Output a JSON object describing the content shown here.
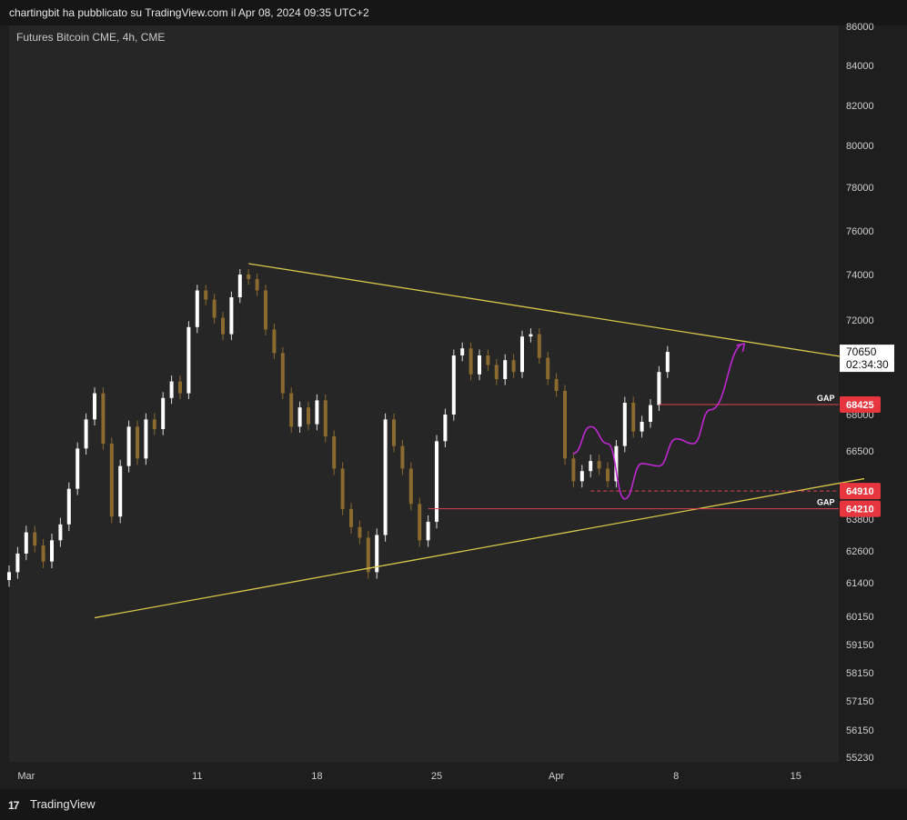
{
  "header": {
    "publish_text": "chartingbit ha pubblicato su TradingView.com il Apr 08, 2024 09:35 UTC+2"
  },
  "symbol": {
    "title": "Futures Bitcoin CME, 4h, CME"
  },
  "footer": {
    "brand": "TradingView",
    "logo_icon": "tradingview-logo-icon"
  },
  "colors": {
    "background": "#262626",
    "bull_candle": "#ffffff",
    "bear_candle": "#8a6a2e",
    "trendline": "#d9c64a",
    "projection": "#c026d3",
    "gap_line": "#e04050",
    "badge": "#e8363f"
  },
  "chart_data": {
    "type": "candlestick",
    "title": "Futures Bitcoin CME, 4h, CME",
    "interval": "4h",
    "y_ticks": [
      86000,
      84000,
      82000,
      80000,
      78000,
      76000,
      74000,
      72000,
      68000,
      66500,
      63800,
      62600,
      61400,
      60150,
      59150,
      58150,
      57150,
      56150,
      55230
    ],
    "y_range": [
      54800,
      86200
    ],
    "x_ticks": [
      {
        "label": "Mar",
        "day": 1
      },
      {
        "label": "11",
        "day": 11
      },
      {
        "label": "18",
        "day": 18
      },
      {
        "label": "25",
        "day": 25
      },
      {
        "label": "Apr",
        "day": 32
      },
      {
        "label": "8",
        "day": 39
      },
      {
        "label": "15",
        "day": 46
      }
    ],
    "close_series": [
      {
        "day": 0.0,
        "close": 61800
      },
      {
        "day": 0.5,
        "close": 62500
      },
      {
        "day": 1.0,
        "close": 63300
      },
      {
        "day": 1.5,
        "close": 62800
      },
      {
        "day": 2.0,
        "close": 62200
      },
      {
        "day": 2.5,
        "close": 63000
      },
      {
        "day": 3.0,
        "close": 63600
      },
      {
        "day": 3.5,
        "close": 65000
      },
      {
        "day": 4.0,
        "close": 66600
      },
      {
        "day": 4.5,
        "close": 67800
      },
      {
        "day": 5.0,
        "close": 68900
      },
      {
        "day": 5.5,
        "close": 66800
      },
      {
        "day": 6.0,
        "close": 63900
      },
      {
        "day": 6.5,
        "close": 65900
      },
      {
        "day": 7.0,
        "close": 67500
      },
      {
        "day": 7.5,
        "close": 66200
      },
      {
        "day": 8.0,
        "close": 67800
      },
      {
        "day": 8.5,
        "close": 67400
      },
      {
        "day": 9.0,
        "close": 68700
      },
      {
        "day": 9.5,
        "close": 69400
      },
      {
        "day": 10.0,
        "close": 68900
      },
      {
        "day": 10.5,
        "close": 71700
      },
      {
        "day": 11.0,
        "close": 73300
      },
      {
        "day": 11.5,
        "close": 72900
      },
      {
        "day": 12.0,
        "close": 72100
      },
      {
        "day": 12.5,
        "close": 71400
      },
      {
        "day": 13.0,
        "close": 73000
      },
      {
        "day": 13.5,
        "close": 74000
      },
      {
        "day": 14.0,
        "close": 73800
      },
      {
        "day": 14.5,
        "close": 73300
      },
      {
        "day": 15.0,
        "close": 71600
      },
      {
        "day": 15.5,
        "close": 70600
      },
      {
        "day": 16.0,
        "close": 68900
      },
      {
        "day": 16.5,
        "close": 67500
      },
      {
        "day": 17.0,
        "close": 68300
      },
      {
        "day": 17.5,
        "close": 67600
      },
      {
        "day": 18.0,
        "close": 68600
      },
      {
        "day": 18.5,
        "close": 67100
      },
      {
        "day": 19.0,
        "close": 65800
      },
      {
        "day": 19.5,
        "close": 64200
      },
      {
        "day": 20.0,
        "close": 63500
      },
      {
        "day": 20.5,
        "close": 63100
      },
      {
        "day": 21.0,
        "close": 61800
      },
      {
        "day": 21.5,
        "close": 63200
      },
      {
        "day": 22.0,
        "close": 67800
      },
      {
        "day": 22.5,
        "close": 66700
      },
      {
        "day": 23.0,
        "close": 65800
      },
      {
        "day": 23.5,
        "close": 64400
      },
      {
        "day": 24.0,
        "close": 63000
      },
      {
        "day": 24.5,
        "close": 63700
      },
      {
        "day": 25.0,
        "close": 66900
      },
      {
        "day": 25.5,
        "close": 68000
      },
      {
        "day": 26.0,
        "close": 70500
      },
      {
        "day": 26.5,
        "close": 70800
      },
      {
        "day": 27.0,
        "close": 69700
      },
      {
        "day": 27.5,
        "close": 70500
      },
      {
        "day": 28.0,
        "close": 70100
      },
      {
        "day": 28.5,
        "close": 69500
      },
      {
        "day": 29.0,
        "close": 70300
      },
      {
        "day": 29.5,
        "close": 69800
      },
      {
        "day": 30.0,
        "close": 71300
      },
      {
        "day": 30.5,
        "close": 71400
      },
      {
        "day": 31.0,
        "close": 70400
      },
      {
        "day": 31.5,
        "close": 69500
      },
      {
        "day": 32.0,
        "close": 69000
      },
      {
        "day": 32.5,
        "close": 66200
      },
      {
        "day": 33.0,
        "close": 65300
      },
      {
        "day": 33.5,
        "close": 65700
      },
      {
        "day": 34.0,
        "close": 66100
      },
      {
        "day": 34.5,
        "close": 65800
      },
      {
        "day": 35.0,
        "close": 65300
      },
      {
        "day": 35.5,
        "close": 66700
      },
      {
        "day": 36.0,
        "close": 68500
      },
      {
        "day": 36.5,
        "close": 67300
      },
      {
        "day": 37.0,
        "close": 67700
      },
      {
        "day": 37.5,
        "close": 68400
      },
      {
        "day": 38.0,
        "close": 69800
      },
      {
        "day": 38.5,
        "close": 70650
      }
    ],
    "trendlines": [
      {
        "name": "resistance",
        "from": {
          "day": 14.0,
          "price": 74500
        },
        "to": {
          "day": 50.0,
          "price": 70300
        }
      },
      {
        "name": "support",
        "from": {
          "day": 5.0,
          "price": 60100
        },
        "to": {
          "day": 50.0,
          "price": 65400
        }
      }
    ],
    "gap_zones": [
      {
        "label": "GAP",
        "level": 68425,
        "from_day": 38.0
      },
      {
        "label": "GAP",
        "level": 64210,
        "from_day": 24.5
      }
    ],
    "dashed_level": {
      "level": 64910,
      "from_day": 34.0
    },
    "projection_path": [
      {
        "day": 33.0,
        "price": 66400
      },
      {
        "day": 34.0,
        "price": 67500
      },
      {
        "day": 35.0,
        "price": 66800
      },
      {
        "day": 36.0,
        "price": 64600
      },
      {
        "day": 37.0,
        "price": 66000
      },
      {
        "day": 38.0,
        "price": 65900
      },
      {
        "day": 39.0,
        "price": 67000
      },
      {
        "day": 40.0,
        "price": 66800
      },
      {
        "day": 41.0,
        "price": 68200
      },
      {
        "day": 43.0,
        "price": 71000
      }
    ],
    "last_price": {
      "value": 70650,
      "countdown": "02:34:30"
    },
    "price_badges": [
      {
        "label": "68425",
        "level": 68425
      },
      {
        "label": "64910",
        "level": 64910
      },
      {
        "label": "64210",
        "level": 64210
      }
    ],
    "gap_labels": [
      "GAP",
      "GAP"
    ]
  }
}
